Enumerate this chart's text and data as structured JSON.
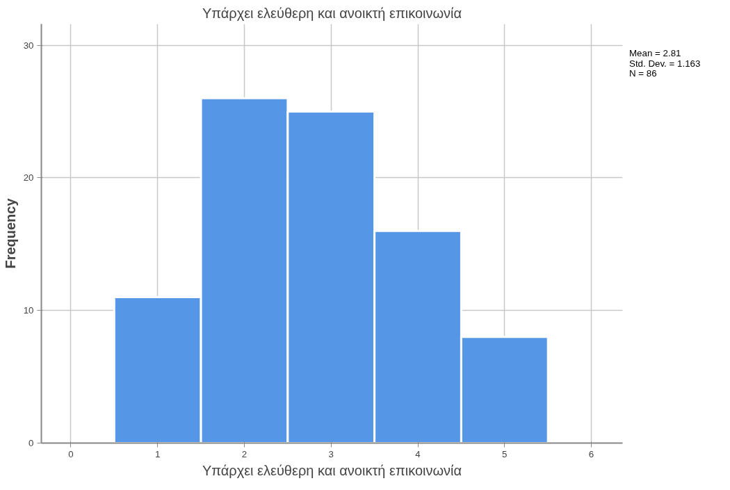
{
  "chart_data": {
    "type": "histogram",
    "title": "Υπάρχει ελεύθερη και ανοικτή επικοινωνία",
    "xlabel": "Υπάρχει ελεύθερη και ανοικτή επικοινωνία",
    "ylabel": "Frequency",
    "bins": [
      0.5,
      1.5,
      2.5,
      3.5,
      4.5,
      5.5
    ],
    "values": [
      11,
      26,
      25,
      16,
      8
    ],
    "color": "#5596e6",
    "xlim": [
      -0.34,
      6.36
    ],
    "ylim": [
      0,
      31.6
    ],
    "xticks": [
      0,
      1,
      2,
      3,
      4,
      5,
      6
    ],
    "yticks": [
      0,
      10,
      20,
      30
    ],
    "grid": true,
    "annotations": [
      "Mean = 2.81",
      "Std. Dev. = 1.163",
      "N = 86"
    ]
  }
}
